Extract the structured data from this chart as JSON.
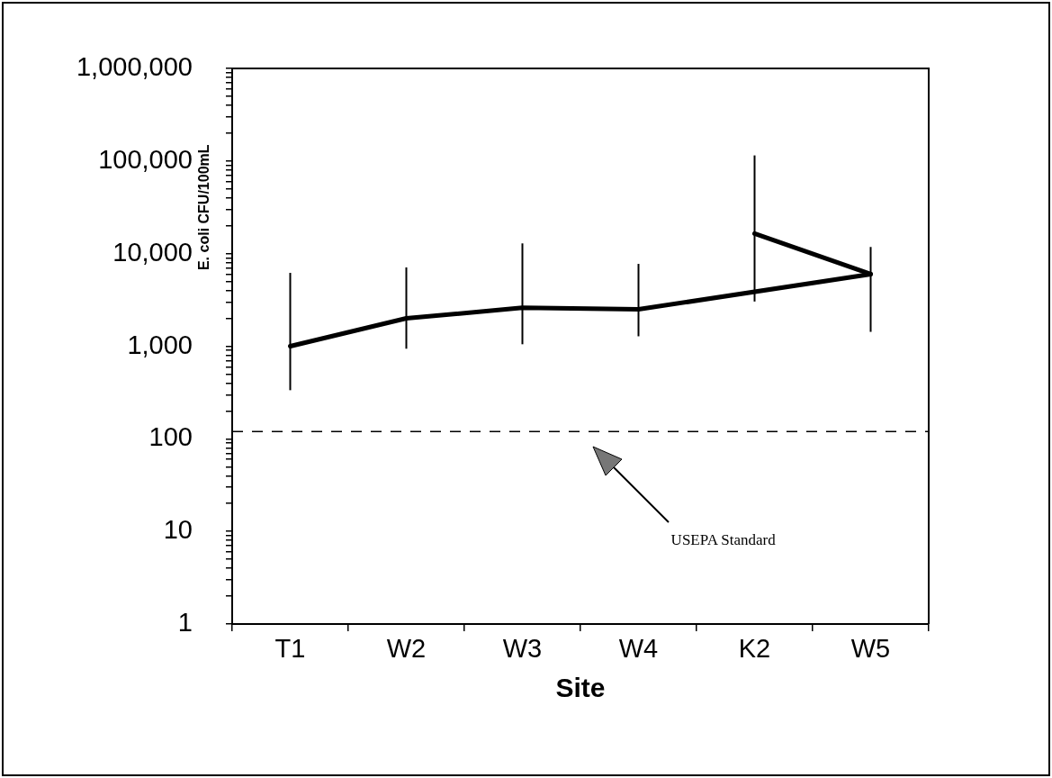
{
  "chart_data": {
    "type": "line",
    "xlabel": "Site",
    "ylabel": "E. coli CFU/100mL",
    "categories": [
      "T1",
      "W2",
      "W3",
      "W4",
      "K2",
      "W5"
    ],
    "series": [
      {
        "color": "#000000",
        "values": [
          1000,
          2000,
          2600,
          2500,
          null,
          6000
        ],
        "errors": [
          [
            335,
            6200
          ],
          [
            940,
            7100
          ],
          [
            1050,
            12900
          ],
          [
            1280,
            7750
          ],
          null,
          [
            1430,
            11800
          ]
        ]
      },
      {
        "color": "#000000",
        "values": [
          null,
          null,
          null,
          null,
          16500,
          6000
        ],
        "errors": [
          null,
          null,
          null,
          null,
          [
            3040,
            115000
          ],
          null
        ]
      }
    ],
    "log": "y",
    "ylim": [
      1,
      1000000
    ],
    "yticks": [
      {
        "value": 1,
        "label": "1"
      },
      {
        "value": 2,
        "label": null
      },
      {
        "value": 3,
        "label": null
      },
      {
        "value": 4,
        "label": null
      },
      {
        "value": 5,
        "label": null
      },
      {
        "value": 6,
        "label": null
      },
      {
        "value": 7,
        "label": null
      },
      {
        "value": 8,
        "label": null
      },
      {
        "value": 9,
        "label": null
      },
      {
        "value": 10,
        "label": "10"
      },
      {
        "value": 20,
        "label": null
      },
      {
        "value": 30,
        "label": null
      },
      {
        "value": 40,
        "label": null
      },
      {
        "value": 50,
        "label": null
      },
      {
        "value": 60,
        "label": null
      },
      {
        "value": 70,
        "label": null
      },
      {
        "value": 80,
        "label": null
      },
      {
        "value": 90,
        "label": null
      },
      {
        "value": 100,
        "label": "100"
      },
      {
        "value": 200,
        "label": null
      },
      {
        "value": 300,
        "label": null
      },
      {
        "value": 400,
        "label": null
      },
      {
        "value": 500,
        "label": null
      },
      {
        "value": 600,
        "label": null
      },
      {
        "value": 700,
        "label": null
      },
      {
        "value": 800,
        "label": null
      },
      {
        "value": 900,
        "label": null
      },
      {
        "value": 1000,
        "label": "1,000"
      },
      {
        "value": 2000,
        "label": null
      },
      {
        "value": 3000,
        "label": null
      },
      {
        "value": 4000,
        "label": null
      },
      {
        "value": 5000,
        "label": null
      },
      {
        "value": 6000,
        "label": null
      },
      {
        "value": 7000,
        "label": null
      },
      {
        "value": 8000,
        "label": null
      },
      {
        "value": 9000,
        "label": null
      },
      {
        "value": 10000,
        "label": "10,000"
      },
      {
        "value": 20000,
        "label": null
      },
      {
        "value": 30000,
        "label": null
      },
      {
        "value": 40000,
        "label": null
      },
      {
        "value": 50000,
        "label": null
      },
      {
        "value": 60000,
        "label": null
      },
      {
        "value": 70000,
        "label": null
      },
      {
        "value": 80000,
        "label": null
      },
      {
        "value": 90000,
        "label": null
      },
      {
        "value": 100000,
        "label": "100,000"
      },
      {
        "value": 200000,
        "label": null
      },
      {
        "value": 300000,
        "label": null
      },
      {
        "value": 400000,
        "label": null
      },
      {
        "value": 500000,
        "label": null
      },
      {
        "value": 600000,
        "label": null
      },
      {
        "value": 700000,
        "label": null
      },
      {
        "value": 800000,
        "label": null
      },
      {
        "value": 900000,
        "label": null
      },
      {
        "value": 1000000,
        "label": "1,000,000"
      }
    ],
    "ref_lines": [
      {
        "axis": "y",
        "value": 120,
        "label": "USEPA Standard",
        "color": "#000000",
        "line_style": "dashed"
      }
    ],
    "grid": false,
    "legend": false,
    "marker": "none",
    "line_style": "solid"
  }
}
